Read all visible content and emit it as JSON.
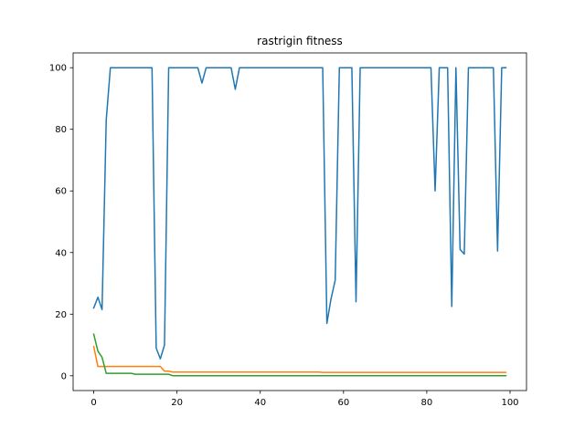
{
  "chart_data": {
    "type": "line",
    "title": "rastrigin fitness",
    "xlabel": "",
    "ylabel": "",
    "xlim": [
      -4.95,
      103.95
    ],
    "ylim": [
      -4.8,
      104.8
    ],
    "xticks": [
      0,
      20,
      40,
      60,
      80,
      100
    ],
    "yticks": [
      0,
      20,
      40,
      60,
      80,
      100
    ],
    "grid": false,
    "legend": "none",
    "x": [
      0,
      1,
      2,
      3,
      4,
      5,
      6,
      7,
      8,
      9,
      10,
      11,
      12,
      13,
      14,
      15,
      16,
      17,
      18,
      19,
      20,
      21,
      22,
      23,
      24,
      25,
      26,
      27,
      28,
      29,
      30,
      31,
      32,
      33,
      34,
      35,
      36,
      37,
      38,
      39,
      40,
      41,
      42,
      43,
      44,
      45,
      46,
      47,
      48,
      49,
      50,
      51,
      52,
      53,
      54,
      55,
      56,
      57,
      58,
      59,
      60,
      61,
      62,
      63,
      64,
      65,
      66,
      67,
      68,
      69,
      70,
      71,
      72,
      73,
      74,
      75,
      76,
      77,
      78,
      79,
      80,
      81,
      82,
      83,
      84,
      85,
      86,
      87,
      88,
      89,
      90,
      91,
      92,
      93,
      94,
      95,
      96,
      97,
      98,
      99
    ],
    "series": [
      {
        "color": "#1f77b4",
        "values": [
          22,
          25.5,
          21.5,
          83,
          100,
          100,
          100,
          100,
          100,
          100,
          100,
          100,
          100,
          100,
          100,
          9,
          5.5,
          10,
          100,
          100,
          100,
          100,
          100,
          100,
          100,
          100,
          95,
          100,
          100,
          100,
          100,
          100,
          100,
          100,
          93,
          100,
          100,
          100,
          100,
          100,
          100,
          100,
          100,
          100,
          100,
          100,
          100,
          100,
          100,
          100,
          100,
          100,
          100,
          100,
          100,
          100,
          17,
          25,
          31,
          100,
          100,
          100,
          100,
          24,
          100,
          100,
          100,
          100,
          100,
          100,
          100,
          100,
          100,
          100,
          100,
          100,
          100,
          100,
          100,
          100,
          100,
          100,
          60,
          100,
          100,
          100,
          22.5,
          100,
          41,
          39.5,
          100,
          100,
          100,
          100,
          100,
          100,
          100,
          40.5,
          100,
          100
        ]
      },
      {
        "color": "#ff7f0e",
        "values": [
          9.5,
          3,
          3,
          3,
          3,
          3,
          3,
          3,
          3,
          3,
          3,
          3,
          3,
          3,
          3,
          3,
          3,
          1.5,
          1.5,
          1.2,
          1.2,
          1.2,
          1.2,
          1.2,
          1.2,
          1.2,
          1.2,
          1.2,
          1.2,
          1.2,
          1.2,
          1.2,
          1.2,
          1.2,
          1.2,
          1.2,
          1.2,
          1.2,
          1.2,
          1.2,
          1.2,
          1.2,
          1.2,
          1.2,
          1.2,
          1.2,
          1.2,
          1.2,
          1.2,
          1.2,
          1.2,
          1.2,
          1.2,
          1.2,
          1.2,
          1.1,
          1.1,
          1.1,
          1.1,
          1.1,
          1.1,
          1.1,
          1.1,
          1.1,
          1.1,
          1.1,
          1.1,
          1.1,
          1.1,
          1.1,
          1.1,
          1.1,
          1.1,
          1.1,
          1.1,
          1.1,
          1.1,
          1.1,
          1.1,
          1.1,
          1.1,
          1.1,
          1.1,
          1.1,
          1.1,
          1.1,
          1.1,
          1.1,
          1.1,
          1.1,
          1.1,
          1.1,
          1.1,
          1.1,
          1.1,
          1.1,
          1.1,
          1.1,
          1.1,
          1.1
        ]
      },
      {
        "color": "#2ca02c",
        "values": [
          13.5,
          8,
          6,
          0.8,
          0.8,
          0.8,
          0.8,
          0.8,
          0.8,
          0.8,
          0.5,
          0.5,
          0.5,
          0.5,
          0.5,
          0.5,
          0.5,
          0.5,
          0.5,
          0,
          0,
          0,
          0,
          0,
          0,
          0,
          0,
          0,
          0,
          0,
          0,
          0,
          0,
          0,
          0,
          0,
          0,
          0,
          0,
          0,
          0,
          0,
          0,
          0,
          0,
          0,
          0,
          0,
          0,
          0,
          0,
          0,
          0,
          0,
          0,
          0,
          0,
          0,
          0,
          0,
          0,
          0,
          0,
          0,
          0,
          0,
          0,
          0,
          0,
          0,
          0,
          0,
          0,
          0,
          0,
          0,
          0,
          0,
          0,
          0,
          0,
          0,
          0,
          0,
          0,
          0,
          0,
          0,
          0,
          0,
          0,
          0,
          0,
          0,
          0,
          0,
          0,
          0,
          0,
          0
        ]
      }
    ]
  }
}
